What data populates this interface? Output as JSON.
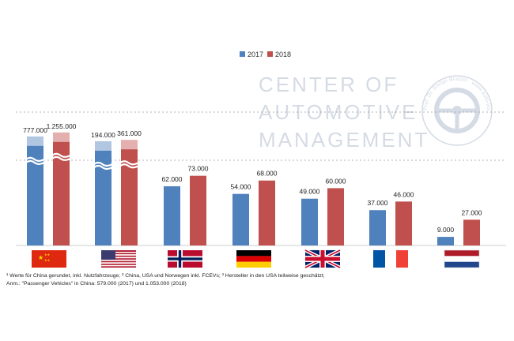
{
  "chart_data": {
    "type": "bar",
    "title": "",
    "categories": [
      "China",
      "USA",
      "Norwegen",
      "Deutschland",
      "Großbritannien",
      "Frankreich",
      "Niederlande"
    ],
    "series": [
      {
        "name": "2017",
        "color": "#4f81bd",
        "values": [
          777000,
          194000,
          62000,
          54000,
          49000,
          37000,
          9000
        ],
        "labels": [
          "777.000",
          "194.000",
          "62.000",
          "54.000",
          "49.000",
          "37.000",
          "9.000"
        ]
      },
      {
        "name": "2018",
        "color": "#c0504d",
        "values": [
          1255000,
          361000,
          73000,
          68000,
          60000,
          46000,
          27000
        ],
        "labels": [
          "1.255.000",
          "361.000",
          "73.000",
          "68.000",
          "60.000",
          "46.000",
          "27.000"
        ]
      }
    ],
    "broken_axis": true,
    "legend_position": "top-right",
    "xlabel": "",
    "ylabel": "",
    "grid": true
  },
  "watermark": {
    "line1": "CENTER OF",
    "line2": "AUTOMOTIVE",
    "line3": "MANAGEMENT",
    "seal_text": "Prof. Dr. Stefan Bratzel · www.auto-institut.de"
  },
  "footnotes": {
    "line1": "¹ Werte für China gerundet, inkl. Nutzfahrzeuge; ² China, USA und Norwegen inkl. FCEVs; ³ Hersteller in den USA teilweise geschätzt;",
    "line2": "Anm.: \"Passenger Vehicles\" in China: 579.000 (2017) und 1.053.000 (2018)"
  }
}
